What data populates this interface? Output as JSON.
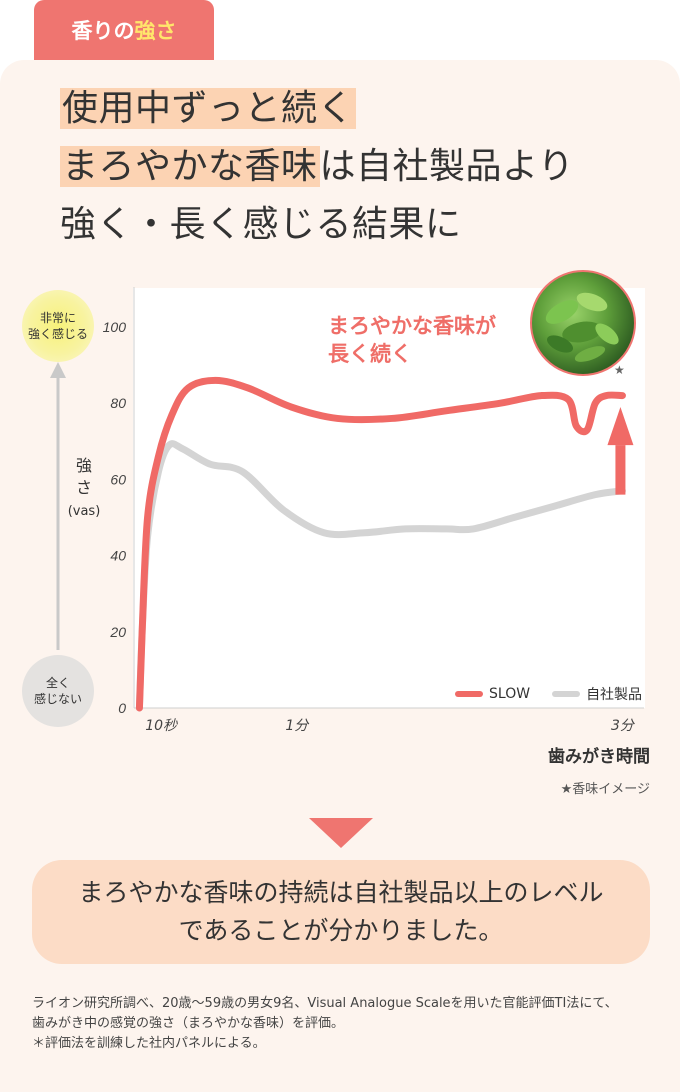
{
  "tab": {
    "part1": "香りの",
    "part2": "強さ"
  },
  "headline": {
    "l1_hl": "使用中ずっと続く",
    "l2_hl": "まろやかな香味",
    "l2_rest": "は自社製品より",
    "l3": "強く・長く感じる結果に"
  },
  "y_top_label": [
    "非常に",
    "強く感じる"
  ],
  "y_bottom_label": [
    "全く",
    "感じない"
  ],
  "y_title": [
    "強",
    "さ",
    "(vas)"
  ],
  "annotation": [
    "まろやかな香味が",
    "長く続く"
  ],
  "photo_star": "★",
  "x_title": "歯みがき時間",
  "x_note": "★香味イメージ",
  "conclusion": [
    "まろやかな香味の持続は自社製品以上のレベル",
    "であることが分かりました。"
  ],
  "footnotes": [
    "ライオン研究所調べ、20歳〜59歳の男女9名、Visual Analogue Scaleを用いた官能評価TI法にて、",
    "歯みがき中の感覚の強さ（まろやかな香味）を評価。",
    "＊評価法を訓練した社内パネルによる。"
  ],
  "colors": {
    "accent": "#ef7570",
    "slow": "#f06a66",
    "own": "#d4d4d4",
    "panel": "#fdf4ee"
  },
  "chart_data": {
    "type": "line",
    "ylim": [
      0,
      100
    ],
    "yticks": [
      "0",
      "20",
      "40",
      "60",
      "80",
      "100"
    ],
    "xticks": [
      {
        "label": "10秒",
        "at": 10
      },
      {
        "label": "1分",
        "at": 60
      },
      {
        "label": "3分",
        "at": 180
      }
    ],
    "xlim": [
      0,
      185
    ],
    "grid": false,
    "legend_position": "bottom-right",
    "series": [
      {
        "name": "SLOW",
        "color": "#f06a66",
        "points": [
          [
            2,
            0
          ],
          [
            3,
            20
          ],
          [
            5,
            50
          ],
          [
            9,
            66
          ],
          [
            14,
            77
          ],
          [
            20,
            84
          ],
          [
            30,
            86
          ],
          [
            42,
            84
          ],
          [
            58,
            79
          ],
          [
            75,
            76
          ],
          [
            95,
            76
          ],
          [
            115,
            78
          ],
          [
            135,
            80
          ],
          [
            150,
            82
          ],
          [
            160,
            81
          ],
          [
            163,
            74
          ],
          [
            167,
            73
          ],
          [
            170,
            80
          ],
          [
            174,
            82
          ],
          [
            180,
            82
          ]
        ]
      },
      {
        "name": "自社製品",
        "color": "#d4d4d4",
        "points": [
          [
            2,
            0
          ],
          [
            3,
            20
          ],
          [
            5,
            45
          ],
          [
            9,
            62
          ],
          [
            13,
            69
          ],
          [
            18,
            68
          ],
          [
            28,
            64
          ],
          [
            40,
            62
          ],
          [
            55,
            52
          ],
          [
            70,
            46
          ],
          [
            85,
            46
          ],
          [
            100,
            47
          ],
          [
            115,
            47
          ],
          [
            125,
            47
          ],
          [
            140,
            50
          ],
          [
            155,
            53
          ],
          [
            170,
            56
          ],
          [
            180,
            57
          ]
        ]
      }
    ]
  }
}
